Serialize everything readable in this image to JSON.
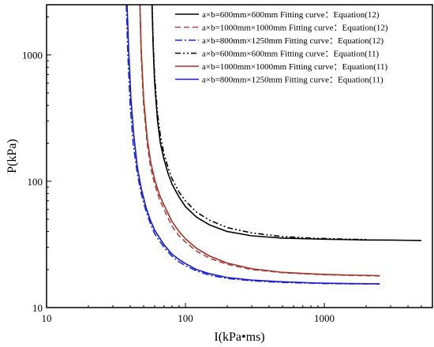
{
  "chart_data": {
    "type": "line",
    "title": "",
    "xlabel": "I(kPa•ms)",
    "ylabel": "P(kPa)",
    "xscale": "log",
    "yscale": "log",
    "xlim": [
      10,
      6000
    ],
    "ylim": [
      10,
      2500
    ],
    "xticks": [
      10,
      100,
      1000
    ],
    "xtick_labels": [
      "10",
      "100",
      "1000"
    ],
    "yticks": [
      10,
      100,
      1000
    ],
    "ytick_labels": [
      "10",
      "100",
      "1000"
    ],
    "grid": false,
    "legend_position": "top-right",
    "series": [
      {
        "name": "a×b=600mm×600mm Fitting curve：Equation(12)",
        "color": "#000000",
        "dash": "solid",
        "x": [
          57.5,
          58.5,
          60,
          63,
          66,
          70,
          75,
          80,
          90,
          100,
          120,
          150,
          200,
          300,
          500,
          800,
          1000,
          1500,
          2000,
          3000,
          5000
        ],
        "y": [
          2500,
          1200,
          600,
          300,
          200,
          150,
          115,
          95,
          75,
          63,
          52,
          45,
          40,
          37,
          35.5,
          35,
          34.8,
          34.5,
          34.3,
          34.2,
          34.0
        ]
      },
      {
        "name": "a×b=1000mm×1000mm Fitting curve：Equation(12)",
        "color": "#b5483e",
        "dash": "dashed",
        "x": [
          47,
          48,
          50,
          53,
          56,
          60,
          65,
          70,
          80,
          90,
          100,
          120,
          150,
          200,
          300,
          500,
          800,
          1000,
          1500,
          2500
        ],
        "y": [
          2500,
          1000,
          400,
          200,
          130,
          95,
          72,
          60,
          44,
          37,
          33,
          28,
          24.5,
          22,
          20,
          18.9,
          18.4,
          18.2,
          18.0,
          17.8
        ]
      },
      {
        "name": "a×b=800mm×1250mm Fitting curve：Equation(12)",
        "color": "#1a2fd6",
        "dash": "dashdot",
        "x": [
          37.5,
          38.5,
          40,
          42,
          45,
          48,
          52,
          56,
          60,
          70,
          80,
          90,
          100,
          120,
          150,
          200,
          300,
          500,
          800,
          1000,
          1500,
          2500
        ],
        "y": [
          2500,
          1000,
          400,
          200,
          115,
          80,
          58,
          46,
          38.5,
          30,
          25.5,
          23,
          21.5,
          19.5,
          18,
          17,
          16.3,
          15.8,
          15.6,
          15.5,
          15.4,
          15.4
        ]
      },
      {
        "name": "a×b=600mm×600mm Fitting curve：Equation(11)",
        "color": "#000000",
        "dash": "dashdotdot",
        "x": [
          57.5,
          58.5,
          60,
          63,
          66,
          70,
          75,
          80,
          90,
          100,
          120,
          150,
          200,
          300,
          500,
          800,
          1000,
          1500,
          2000
        ],
        "y": [
          2500,
          1300,
          680,
          340,
          230,
          165,
          128,
          105,
          82,
          70,
          57,
          49,
          43,
          39,
          36.5,
          35.5,
          35.2,
          34.8,
          34.6
        ]
      },
      {
        "name": "a×b=1000mm×1000mm Fitting curve：Equation(11)",
        "color": "#a0322a",
        "dash": "solid",
        "x": [
          47,
          48,
          50,
          53,
          56,
          60,
          65,
          70,
          80,
          90,
          100,
          120,
          150,
          200,
          300,
          500,
          800,
          1000,
          1500,
          2500
        ],
        "y": [
          2500,
          1100,
          450,
          220,
          145,
          103,
          78,
          65,
          48,
          40,
          35,
          29.5,
          25.5,
          22.5,
          20.3,
          19.0,
          18.5,
          18.3,
          18.1,
          17.9
        ]
      },
      {
        "name": "a×b=800mm×1250mm Fitting curve：Equation(11)",
        "color": "#1a1ad6",
        "dash": "solid",
        "x": [
          38,
          39,
          40.5,
          42.5,
          45,
          48,
          52,
          56,
          60,
          70,
          80,
          90,
          100,
          120,
          150,
          200,
          300,
          500,
          800,
          1000,
          1500,
          2500
        ],
        "y": [
          2500,
          1100,
          450,
          230,
          130,
          88,
          62,
          49,
          41,
          31.5,
          26.5,
          24,
          22.3,
          20,
          18.5,
          17.3,
          16.5,
          16.0,
          15.7,
          15.6,
          15.5,
          15.4
        ]
      }
    ]
  }
}
